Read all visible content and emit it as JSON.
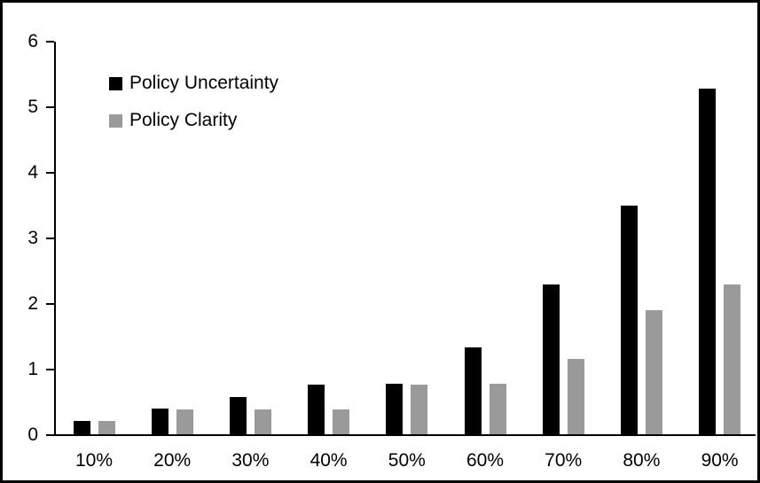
{
  "chart_data": {
    "type": "bar",
    "title": "",
    "categories": [
      "10%",
      "20%",
      "30%",
      "40%",
      "50%",
      "60%",
      "70%",
      "80%",
      "90%"
    ],
    "series": [
      {
        "name": "Policy Uncertainty",
        "color": "#000000",
        "values": [
          0.2,
          0.4,
          0.57,
          0.76,
          0.78,
          1.33,
          2.3,
          3.5,
          5.3
        ]
      },
      {
        "name": "Policy Clarity",
        "color": "#9a9a9a",
        "values": [
          0.2,
          0.38,
          0.38,
          0.38,
          0.76,
          0.77,
          1.15,
          1.9,
          2.3
        ]
      }
    ],
    "xlabel": "",
    "ylabel": "",
    "ylim": [
      0,
      6
    ],
    "yticks": [
      0,
      1,
      2,
      3,
      4,
      5,
      6
    ],
    "grid": false,
    "legend_position": "top-left-inside",
    "plot_background": "#ffffff",
    "axis_color": "#000000"
  }
}
